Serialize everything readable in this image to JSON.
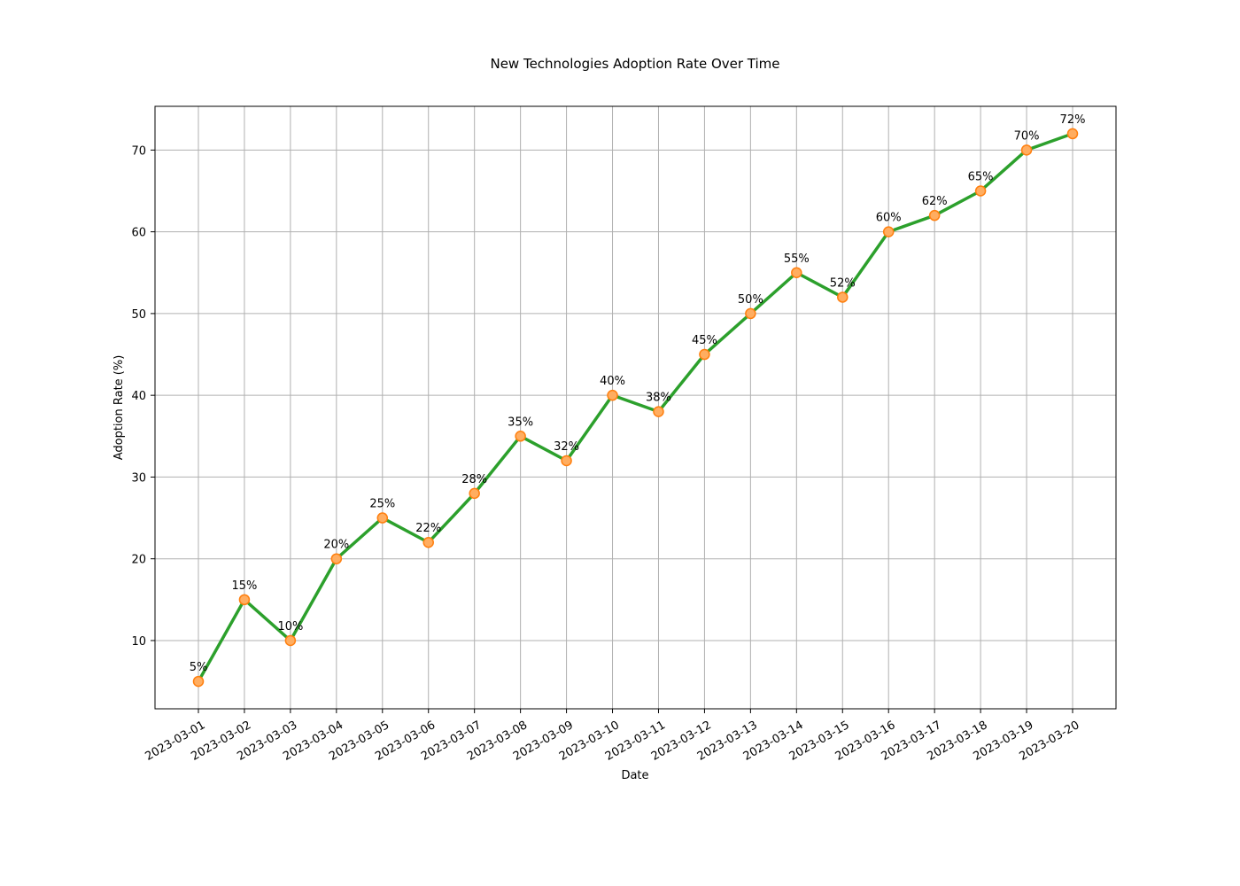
{
  "chart_data": {
    "type": "line",
    "title": "New Technologies Adoption Rate Over Time",
    "xlabel": "Date",
    "ylabel": "Adoption Rate (%)",
    "x": [
      "2023-03-01",
      "2023-03-02",
      "2023-03-03",
      "2023-03-04",
      "2023-03-05",
      "2023-03-06",
      "2023-03-07",
      "2023-03-08",
      "2023-03-09",
      "2023-03-10",
      "2023-03-11",
      "2023-03-12",
      "2023-03-13",
      "2023-03-14",
      "2023-03-15",
      "2023-03-16",
      "2023-03-17",
      "2023-03-18",
      "2023-03-19",
      "2023-03-20"
    ],
    "series": [
      {
        "values": [
          5,
          15,
          10,
          20,
          25,
          22,
          28,
          35,
          32,
          40,
          38,
          45,
          50,
          55,
          52,
          60,
          62,
          65,
          70,
          72
        ],
        "data_labels": [
          "5%",
          "15%",
          "10%",
          "20%",
          "25%",
          "22%",
          "28%",
          "35%",
          "32%",
          "40%",
          "38%",
          "45%",
          "50%",
          "55%",
          "52%",
          "60%",
          "62%",
          "65%",
          "70%",
          "72%"
        ]
      }
    ],
    "yticks": [
      10,
      20,
      30,
      40,
      50,
      60,
      70
    ],
    "ylim": [
      1.65,
      75.35
    ],
    "grid": true,
    "legend": "none",
    "colors": {
      "line": "#2ca02c",
      "marker_fill": "#ffad60",
      "marker_edge": "#ff7f0e",
      "grid": "#b0b0b0"
    }
  }
}
